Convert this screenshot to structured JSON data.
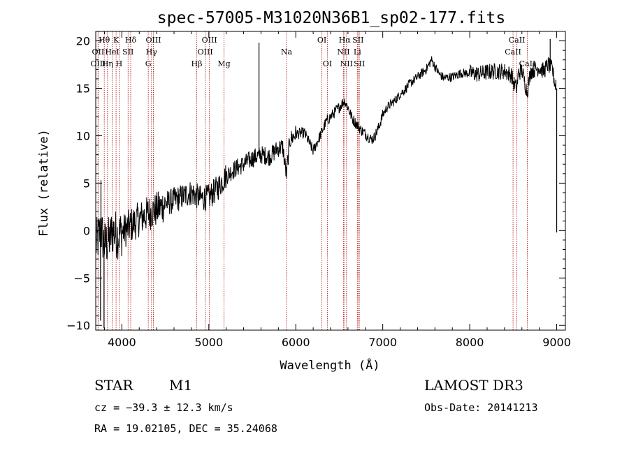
{
  "chart_data": {
    "type": "line",
    "title": "spec-57005-M31020N36B1_sp02-177.fits",
    "xlabel": "Wavelength (Å)",
    "ylabel": "Flux (relative)",
    "xlim": [
      3700,
      9100
    ],
    "ylim": [
      -10.5,
      21
    ],
    "xticks": [
      4000,
      5000,
      6000,
      7000,
      8000,
      9000
    ],
    "yticks": [
      -10,
      -5,
      0,
      5,
      10,
      15,
      20
    ],
    "spectrum_anchors": {
      "x": [
        3700,
        3760,
        3800,
        3850,
        3900,
        3950,
        4000,
        4100,
        4200,
        4300,
        4400,
        4500,
        4600,
        4700,
        4800,
        4900,
        5000,
        5100,
        5200,
        5300,
        5400,
        5500,
        5600,
        5700,
        5800,
        5850,
        5893,
        5930,
        6000,
        6100,
        6200,
        6280,
        6350,
        6450,
        6500,
        6560,
        6600,
        6650,
        6700,
        6750,
        6800,
        6870,
        6900,
        6950,
        7000,
        7050,
        7100,
        7150,
        7200,
        7250,
        7300,
        7400,
        7500,
        7560,
        7600,
        7650,
        7700,
        7800,
        7900,
        8000,
        8100,
        8200,
        8300,
        8400,
        8480,
        8500,
        8540,
        8560,
        8600,
        8660,
        8700,
        8750,
        8800,
        8850,
        8900,
        8950,
        8990
      ],
      "y": [
        -1.5,
        0,
        -1.5,
        -1,
        0,
        -0.5,
        -0.2,
        0.5,
        1.2,
        1.8,
        2.2,
        2.8,
        3.2,
        3.6,
        4.0,
        3.4,
        3.5,
        4.5,
        5.8,
        6.5,
        7.0,
        7.6,
        8.0,
        7.8,
        8.7,
        8.8,
        5.8,
        9.5,
        10.2,
        10.3,
        8.4,
        10.0,
        11.5,
        12.5,
        13.0,
        13.7,
        13.0,
        11.8,
        11.2,
        10.6,
        10.2,
        9.6,
        9.8,
        10.8,
        12.2,
        13.0,
        13.4,
        13.8,
        14.4,
        14.8,
        15.4,
        16.2,
        17.0,
        18.0,
        17.3,
        16.5,
        16.1,
        16.2,
        16.6,
        16.6,
        16.5,
        16.7,
        16.8,
        16.8,
        16.4,
        15.6,
        15.0,
        16.6,
        16.9,
        14.6,
        16.8,
        17.0,
        17.2,
        16.8,
        17.5,
        17.0,
        15.0
      ]
    },
    "spikes": [
      {
        "x": 3755,
        "y": -9.5
      },
      {
        "x": 3760,
        "y": 5.3
      },
      {
        "x": 3795,
        "y": -10.3
      },
      {
        "x": 5577,
        "y": 19.8
      },
      {
        "x": 8925,
        "y": 20.2
      },
      {
        "x": 8990,
        "y": 15.9
      },
      {
        "x": 9000,
        "y": -0.2
      }
    ],
    "spectral_lines": [
      {
        "name": "Hθ",
        "x": 3798,
        "row": 1
      },
      {
        "name": "OII",
        "x": 3727,
        "row": 2
      },
      {
        "name": "OIII",
        "x": 3727,
        "row": 3
      },
      {
        "name": "K",
        "x": 3934,
        "row": 1
      },
      {
        "name": "HeI",
        "x": 3889,
        "row": 2
      },
      {
        "name": "Hη",
        "x": 3835,
        "row": 3
      },
      {
        "name": "SII",
        "x": 4072,
        "row": 2
      },
      {
        "name": "H",
        "x": 3969,
        "row": 3
      },
      {
        "name": "Hδ",
        "x": 4102,
        "row": 1
      },
      {
        "name": "OIII",
        "x": 4363,
        "row": 1
      },
      {
        "name": "Hγ",
        "x": 4341,
        "row": 2
      },
      {
        "name": "G",
        "x": 4304,
        "row": 3
      },
      {
        "name": "Hβ",
        "x": 4861,
        "row": 3
      },
      {
        "name": "OIII",
        "x": 5007,
        "row": 1
      },
      {
        "name": "OIII",
        "x": 4959,
        "row": 2
      },
      {
        "name": "Mg",
        "x": 5175,
        "row": 3
      },
      {
        "name": "Na",
        "x": 5893,
        "row": 2
      },
      {
        "name": "OI",
        "x": 6300,
        "row": 1
      },
      {
        "name": "OI",
        "x": 6363,
        "row": 3
      },
      {
        "name": "Hα",
        "x": 6563,
        "row": 1
      },
      {
        "name": "NII",
        "x": 6548,
        "row": 2
      },
      {
        "name": "NII",
        "x": 6583,
        "row": 3
      },
      {
        "name": "SII",
        "x": 6716,
        "row": 1
      },
      {
        "name": "Li",
        "x": 6708,
        "row": 2
      },
      {
        "name": "SII",
        "x": 6731,
        "row": 3
      },
      {
        "name": "CaII",
        "x": 8542,
        "row": 1
      },
      {
        "name": "CaII",
        "x": 8498,
        "row": 2
      },
      {
        "name": "CaII",
        "x": 8662,
        "row": 3
      }
    ],
    "annotations": {
      "object_class": "STAR",
      "subclass": "M1",
      "survey": "LAMOST DR3",
      "redshift": "cz = −39.3 ± 12.3 km/s",
      "obs_date": "Obs-Date: 20141213",
      "coords": "RA =  19.02105, DEC =  35.24068"
    },
    "colors": {
      "line": "#000000",
      "marker": "#b22222",
      "background": "#ffffff"
    }
  }
}
